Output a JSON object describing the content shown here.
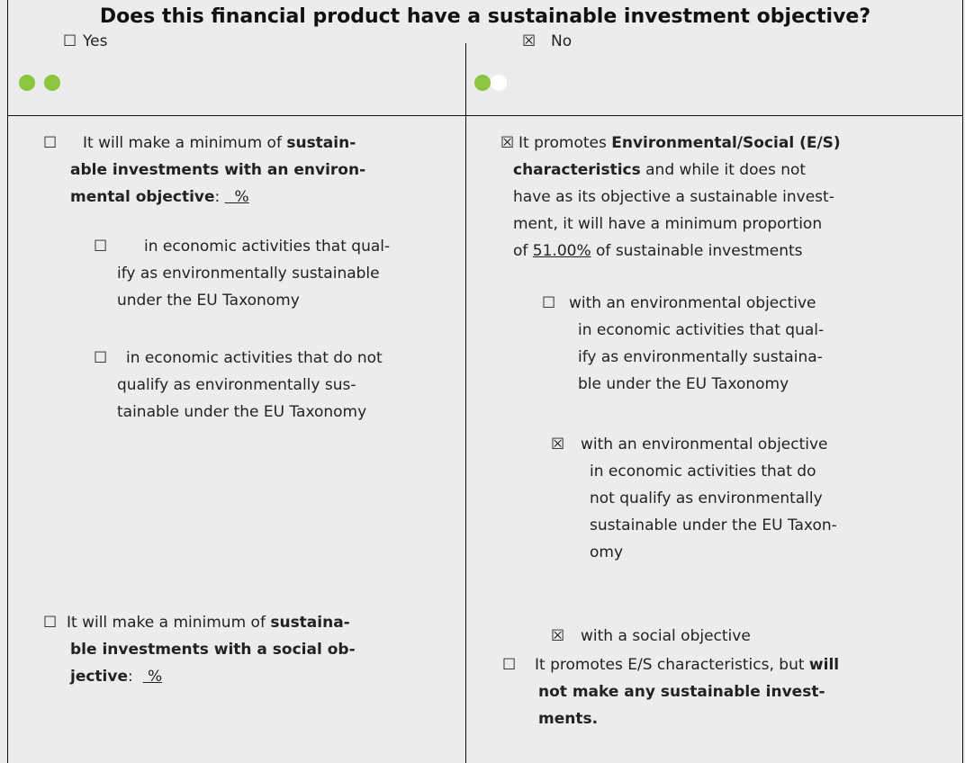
{
  "title": "Does this financial product have a sustainable investment objective?",
  "yes": {
    "checkbox": "☐",
    "label": "Yes"
  },
  "no": {
    "checkbox": "☒",
    "label": "No"
  },
  "left": [
    {
      "checkbox": "☐",
      "lines": [
        [
          {
            "text": "It will make a minimum of "
          },
          {
            "text": "sustain-",
            "style": "bold"
          }
        ],
        [
          {
            "text": "able investments with an environ-",
            "style": "bold"
          }
        ],
        [
          {
            "text": "mental objective",
            "style": "bold"
          },
          {
            "text": ": "
          },
          {
            "text": "  %",
            "style": "underline"
          }
        ]
      ]
    },
    {
      "checkbox": "☐",
      "lines": [
        [
          {
            "text": "in economic activities that qual-"
          }
        ],
        [
          {
            "text": "ify as environmentally sustainable"
          }
        ],
        [
          {
            "text": "under the EU Taxonomy"
          }
        ]
      ]
    },
    {
      "checkbox": "☐",
      "lines": [
        [
          {
            "text": "in economic activities that do not"
          }
        ],
        [
          {
            "text": "qualify as environmentally sus-"
          }
        ],
        [
          {
            "text": "tainable under the EU Taxonomy"
          }
        ]
      ]
    },
    {
      "checkbox": "☐",
      "lines": [
        [
          {
            "text": "It will make a minimum of "
          },
          {
            "text": "sustaina-",
            "style": "bold"
          }
        ],
        [
          {
            "text": "ble investments with a social ob-",
            "style": "bold"
          }
        ],
        [
          {
            "text": "jective",
            "style": "bold"
          },
          {
            "text": ":  "
          },
          {
            "text": " %",
            "style": "underline"
          }
        ]
      ]
    }
  ],
  "right": [
    {
      "checkbox": "☒",
      "lines": [
        [
          {
            "text": "It promotes "
          },
          {
            "text": "Environmental/Social (E/S)",
            "style": "bold"
          }
        ],
        [
          {
            "text": "characteristics",
            "style": "bold"
          },
          {
            "text": " and while it does not"
          }
        ],
        [
          {
            "text": "have as its objective a sustainable invest-"
          }
        ],
        [
          {
            "text": "ment, it will have a minimum proportion"
          }
        ],
        [
          {
            "text": "of "
          },
          {
            "text": "51.00%",
            "style": "underline"
          },
          {
            "text": " of sustainable investments"
          }
        ]
      ]
    },
    {
      "checkbox": "☐",
      "lines": [
        [
          {
            "text": "with an environmental objective"
          }
        ],
        [
          {
            "text": "in economic activities that qual-"
          }
        ],
        [
          {
            "text": "ify as environmentally sustaina-"
          }
        ],
        [
          {
            "text": "ble under the EU Taxonomy"
          }
        ]
      ]
    },
    {
      "checkbox": "☒",
      "lines": [
        [
          {
            "text": "with an environmental objective"
          }
        ],
        [
          {
            "text": "in economic activities that do"
          }
        ],
        [
          {
            "text": "not qualify as environmentally"
          }
        ],
        [
          {
            "text": "sustainable under the EU Taxon-"
          }
        ],
        [
          {
            "text": "omy"
          }
        ]
      ]
    },
    {
      "checkbox": "☒",
      "lines": [
        [
          {
            "text": "with a social objective"
          }
        ]
      ]
    },
    {
      "checkbox": "☐",
      "lines": [
        [
          {
            "text": "It promotes E/S characteristics, but "
          },
          {
            "text": "will",
            "style": "bold"
          }
        ],
        [
          {
            "text": "not make any sustainable invest-",
            "style": "bold"
          }
        ],
        [
          {
            "text": "ments.",
            "style": "bold"
          }
        ]
      ]
    }
  ]
}
